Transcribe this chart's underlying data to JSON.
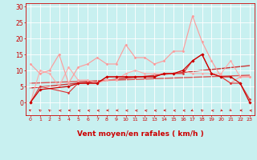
{
  "background_color": "#c8f0f0",
  "grid_color": "#ffffff",
  "xlabel": "Vent moyen/en rafales ( km/h )",
  "xlabel_color": "#cc0000",
  "ylim": [
    -4,
    31
  ],
  "xlim": [
    -0.5,
    23.5
  ],
  "series": [
    {
      "x": [
        0,
        1,
        4,
        5,
        6,
        7,
        8,
        9,
        10,
        11,
        12,
        13,
        14,
        15,
        16,
        17,
        18,
        19,
        20,
        21,
        22,
        23
      ],
      "y": [
        0,
        4,
        5,
        6,
        6,
        6,
        8,
        8,
        8,
        8,
        8,
        8,
        9,
        9,
        10,
        13,
        15,
        9,
        8,
        8,
        6,
        0
      ],
      "color": "#cc0000",
      "linewidth": 0.9,
      "marker": "D",
      "markersize": 1.8,
      "zorder": 5
    },
    {
      "x": [
        0,
        1,
        4,
        5,
        6,
        7,
        8,
        9,
        10,
        11,
        12,
        13,
        14,
        15,
        16,
        17,
        18,
        19,
        20,
        21,
        22,
        23
      ],
      "y": [
        0,
        5,
        3,
        6,
        6,
        6,
        8,
        8,
        8,
        8,
        8,
        8,
        9,
        9,
        9,
        13,
        15,
        9,
        8,
        6,
        6,
        1
      ],
      "color": "#dd3333",
      "linewidth": 0.8,
      "marker": "D",
      "markersize": 1.5,
      "zorder": 4
    },
    {
      "x": [
        0,
        1,
        2,
        3,
        4,
        5,
        6,
        7,
        8,
        9,
        10,
        11,
        12,
        13,
        14,
        15,
        16,
        17,
        18,
        19,
        20,
        21,
        22,
        23
      ],
      "y": [
        12,
        9,
        10,
        15,
        6,
        11,
        12,
        14,
        12,
        12,
        18,
        14,
        14,
        12,
        13,
        16,
        16,
        27,
        19,
        13,
        8,
        6,
        8,
        8
      ],
      "color": "#ff9999",
      "linewidth": 0.8,
      "marker": "D",
      "markersize": 1.5,
      "zorder": 3
    },
    {
      "x": [
        0,
        1,
        2,
        3,
        4,
        5,
        6,
        7,
        8,
        9,
        10,
        11,
        12,
        13,
        14,
        15,
        16,
        17,
        18,
        19,
        20,
        21,
        22,
        23
      ],
      "y": [
        0,
        10,
        9,
        5,
        11,
        7,
        7,
        6,
        7,
        7,
        9,
        10,
        9,
        9,
        9,
        9,
        10,
        9,
        9,
        9,
        9,
        13,
        8,
        8
      ],
      "color": "#ffaaaa",
      "linewidth": 0.8,
      "marker": "D",
      "markersize": 1.5,
      "zorder": 2
    },
    {
      "x": [
        0,
        23
      ],
      "y": [
        4.5,
        11.5
      ],
      "color": "#cc3333",
      "linewidth": 1.0,
      "marker": null,
      "zorder": 1,
      "linestyle": "-"
    },
    {
      "x": [
        0,
        23
      ],
      "y": [
        6.0,
        8.5
      ],
      "color": "#dd5555",
      "linewidth": 1.0,
      "marker": null,
      "zorder": 1,
      "linestyle": "-"
    }
  ],
  "yticks": [
    0,
    5,
    10,
    15,
    20,
    25,
    30
  ],
  "ytick_labels": [
    "0",
    "5",
    "10",
    "15",
    "20",
    "25",
    "30"
  ],
  "xtick_labels": [
    "0",
    "1",
    "2",
    "3",
    "4",
    "5",
    "6",
    "7",
    "8",
    "9",
    "10",
    "11",
    "12",
    "13",
    "14",
    "15",
    "16",
    "17",
    "18",
    "19",
    "20",
    "21",
    "22",
    "23"
  ],
  "arrow_angles": [
    225,
    202,
    202,
    247,
    270,
    247,
    247,
    247,
    270,
    270,
    247,
    247,
    247,
    247,
    270,
    247,
    247,
    315,
    202,
    247,
    45,
    22,
    270,
    247
  ]
}
